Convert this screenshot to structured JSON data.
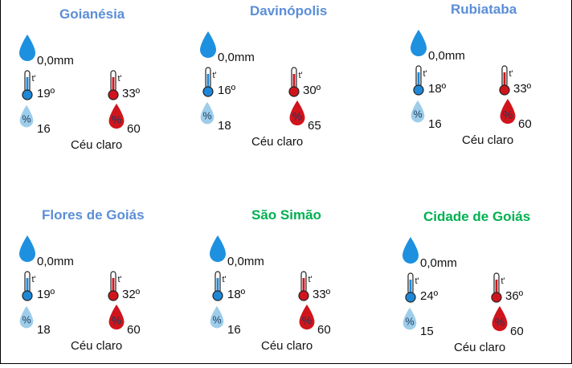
{
  "colors": {
    "title_blue": "#5b8ed6",
    "title_green": "#00b050",
    "rain_drop": "#1e90e0",
    "min_thermo": "#1e88d8",
    "max_thermo": "#d0141c",
    "min_humidity_drop": "#9ecdea",
    "max_humidity_drop": "#d0141c"
  },
  "icon_names": {
    "rain": "rain-drop-icon",
    "min_temp": "thermometer-min-icon",
    "max_temp": "thermometer-max-icon",
    "min_humidity": "humidity-min-icon",
    "max_humidity": "humidity-max-icon"
  },
  "humidity_symbol": "%",
  "thermo_mark": "t'",
  "cities": [
    {
      "name": "Goianésia",
      "title_color": "blue",
      "rain": "0,0mm",
      "min_temp": "19º",
      "max_temp": "33º",
      "min_humidity": "16",
      "max_humidity": "60",
      "condition": "Céu claro"
    },
    {
      "name": "Davinópolis",
      "title_color": "blue",
      "rain": "0,0mm",
      "min_temp": "16º",
      "max_temp": "30º",
      "min_humidity": "18",
      "max_humidity": "65",
      "condition": "Céu claro"
    },
    {
      "name": "Rubiataba",
      "title_color": "blue",
      "rain": "0,0mm",
      "min_temp": "18º",
      "max_temp": "33º",
      "min_humidity": "16",
      "max_humidity": "60",
      "condition": "Céu claro"
    },
    {
      "name": "Flores de Goiás",
      "title_color": "blue",
      "rain": "0,0mm",
      "min_temp": "19º",
      "max_temp": "32º",
      "min_humidity": "18",
      "max_humidity": "60",
      "condition": "Céu claro"
    },
    {
      "name": "São Simão",
      "title_color": "green",
      "rain": "0,0mm",
      "min_temp": "18º",
      "max_temp": "33º",
      "min_humidity": "16",
      "max_humidity": "60",
      "condition": "Céu claro"
    },
    {
      "name": "Cidade de Goiás",
      "title_color": "green",
      "rain": "0,0mm",
      "min_temp": "24º",
      "max_temp": "36º",
      "min_humidity": "15",
      "max_humidity": "60",
      "condition": "Céu claro"
    }
  ]
}
